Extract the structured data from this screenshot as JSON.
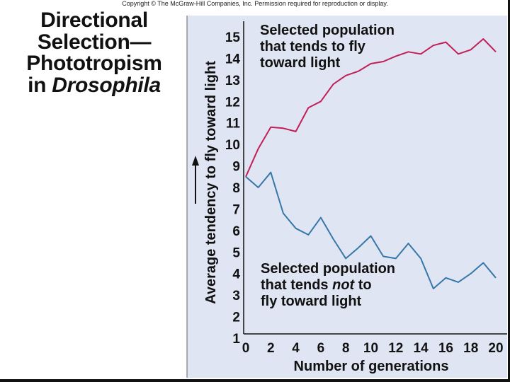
{
  "header": {
    "copyright": "Copyright © The McGraw-Hill Companies, Inc. Permission required for reproduction or display."
  },
  "slide_title": {
    "line1": "Directional",
    "line2": "Selection—",
    "line3": "Phototropism",
    "line4_prefix": "in ",
    "line4_italic": "Drosophila"
  },
  "colors": {
    "panel_bg": "#dfe5f2",
    "toward_light": "#c21f57",
    "not_toward_light": "#3777a8"
  },
  "chart_data": {
    "type": "line",
    "xlabel": "Number of generations",
    "ylabel": "Average tendency to fly toward light",
    "xlim": [
      0,
      20
    ],
    "ylim": [
      1,
      15
    ],
    "x_ticks": [
      "0",
      "2",
      "4",
      "6",
      "8",
      "10",
      "12",
      "14",
      "16",
      "18",
      "20"
    ],
    "y_ticks": [
      "1",
      "2",
      "3",
      "4",
      "5",
      "6",
      "7",
      "8",
      "9",
      "10",
      "11",
      "12",
      "13",
      "14",
      "15"
    ],
    "series": [
      {
        "name_lines": [
          "Selected population",
          "that tends to fly",
          "toward light"
        ],
        "x": [
          0,
          1,
          2,
          3,
          4,
          5,
          6,
          7,
          8,
          9,
          10,
          11,
          12,
          13,
          14,
          15,
          16,
          17,
          18,
          19,
          20
        ],
        "y": [
          8.5,
          9.8,
          10.8,
          10.75,
          10.6,
          11.7,
          12.0,
          12.8,
          13.2,
          13.4,
          13.75,
          13.85,
          14.1,
          14.3,
          14.2,
          14.6,
          14.75,
          14.2,
          14.4,
          14.9,
          14.3
        ]
      },
      {
        "name_lines": [
          "Selected population",
          "that tends ",
          "not",
          " to",
          "fly toward light"
        ],
        "x": [
          0,
          1,
          2,
          3,
          4,
          5,
          6,
          7,
          8,
          9,
          10,
          11,
          12,
          13,
          14,
          15,
          16,
          17,
          18,
          19,
          20
        ],
        "y": [
          8.5,
          8.0,
          8.7,
          6.8,
          6.1,
          5.8,
          6.6,
          5.6,
          4.7,
          5.2,
          5.75,
          4.8,
          4.7,
          5.4,
          4.7,
          3.3,
          3.8,
          3.6,
          4.0,
          4.5,
          3.8
        ]
      }
    ]
  }
}
